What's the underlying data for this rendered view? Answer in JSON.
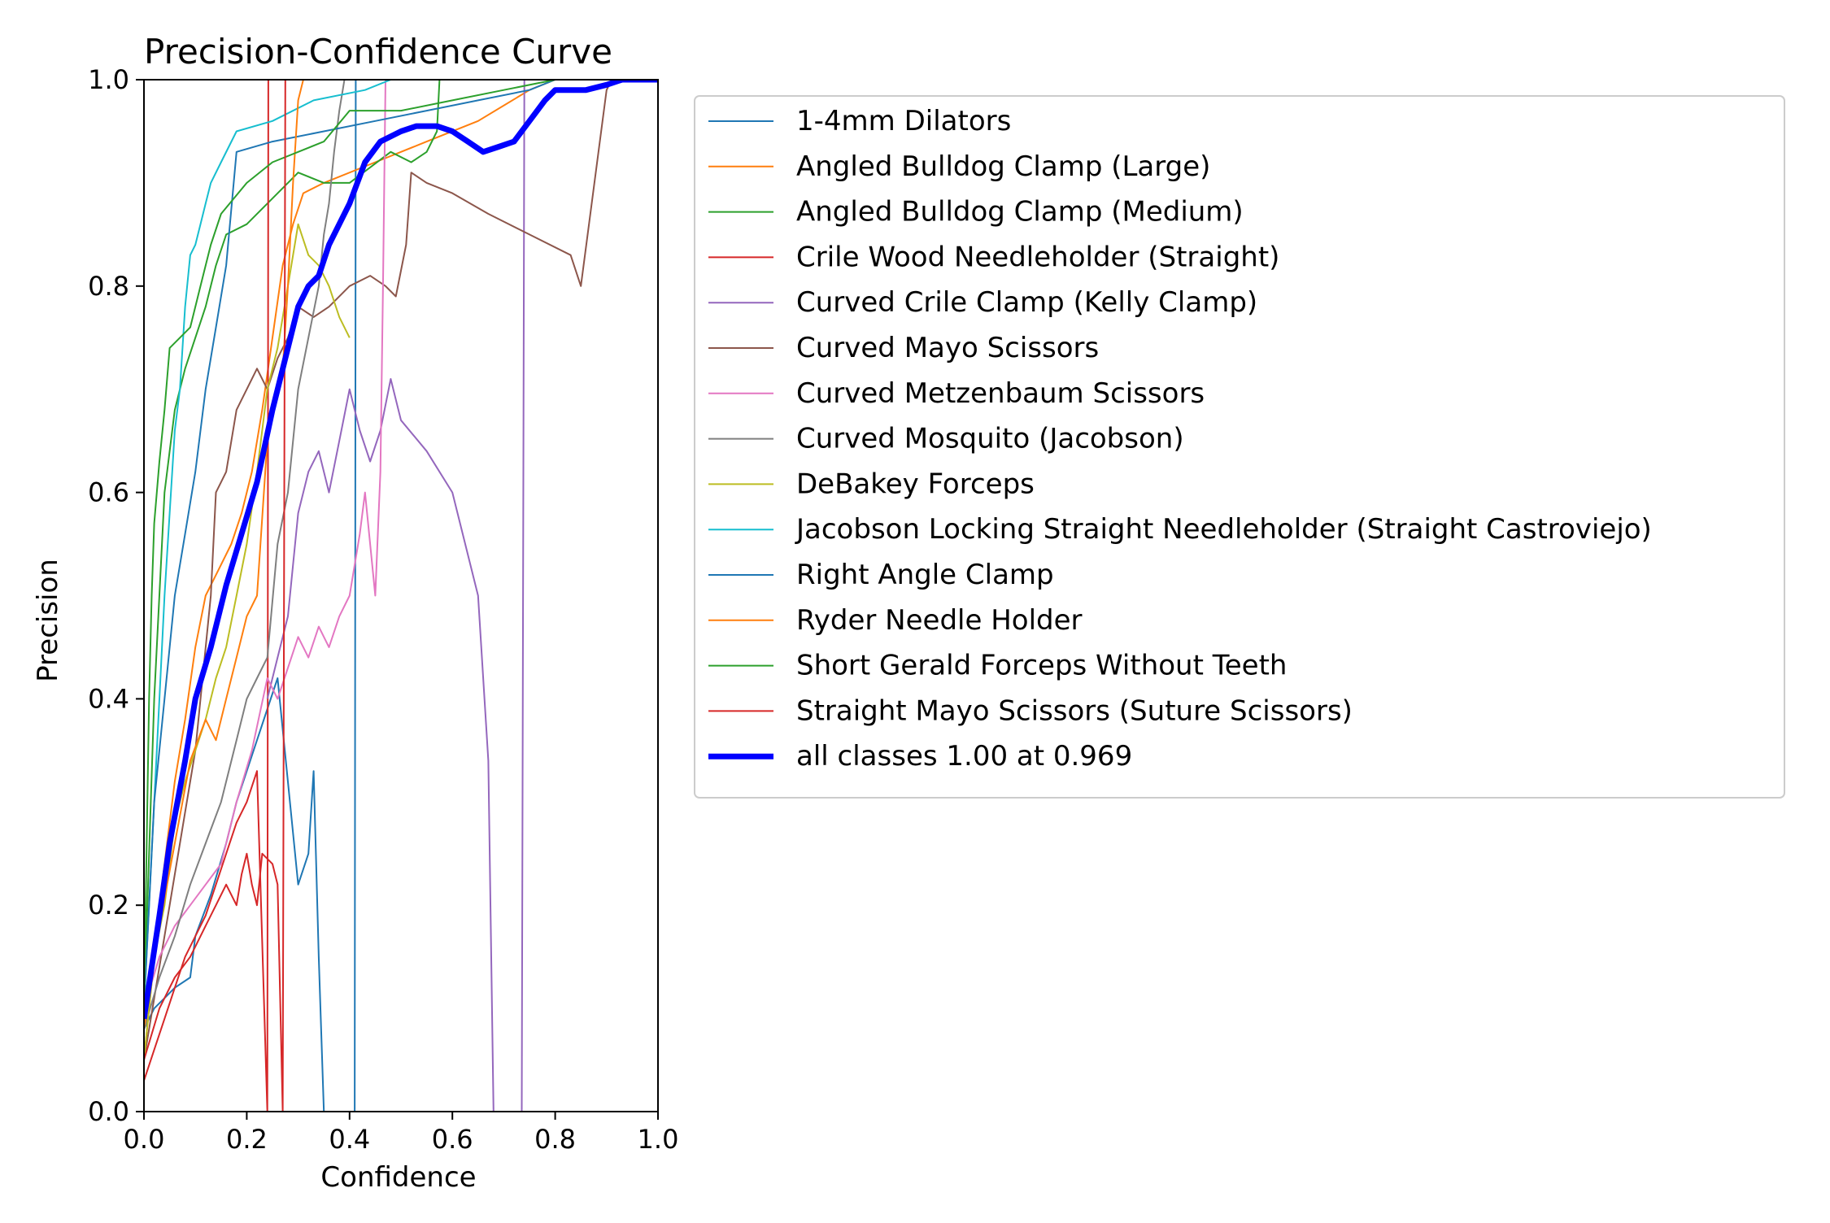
{
  "chart_data": {
    "type": "line",
    "title": "Precision-Confidence Curve",
    "xlabel": "Confidence",
    "ylabel": "Precision",
    "xlim": [
      0,
      1
    ],
    "ylim": [
      0,
      1
    ],
    "xticks": [
      "0.0",
      "0.2",
      "0.4",
      "0.6",
      "0.8",
      "1.0"
    ],
    "yticks": [
      "0.0",
      "0.2",
      "0.4",
      "0.6",
      "0.8",
      "1.0"
    ],
    "grid": false,
    "legend_position": "outside-right",
    "series": [
      {
        "name": "1-4mm Dilators",
        "color": "#1f77b4",
        "width": 2,
        "x": [
          0.0,
          0.02,
          0.04,
          0.06,
          0.09,
          0.1,
          0.13,
          0.16,
          0.18,
          0.22,
          0.26,
          0.3,
          0.32,
          0.33,
          0.34,
          0.35,
          0.41,
          0.412,
          0.414
        ],
        "y": [
          0.08,
          0.1,
          0.11,
          0.12,
          0.13,
          0.17,
          0.21,
          0.26,
          0.3,
          0.36,
          0.42,
          0.22,
          0.25,
          0.33,
          0.15,
          0.0,
          0.0,
          1.0,
          1.0
        ]
      },
      {
        "name": "Angled Bulldog Clamp (Large)",
        "color": "#ff7f0e",
        "width": 2,
        "x": [
          0.0,
          0.03,
          0.06,
          0.08,
          0.1,
          0.12,
          0.15,
          0.17,
          0.19,
          0.21,
          0.23,
          0.25,
          0.27,
          0.29,
          0.31,
          0.35,
          0.45,
          0.55,
          0.65,
          0.75,
          0.8,
          1.0
        ],
        "y": [
          0.05,
          0.2,
          0.32,
          0.38,
          0.45,
          0.5,
          0.53,
          0.55,
          0.58,
          0.62,
          0.68,
          0.75,
          0.82,
          0.86,
          0.89,
          0.9,
          0.92,
          0.94,
          0.96,
          0.99,
          1.0,
          1.0
        ]
      },
      {
        "name": "Angled Bulldog Clamp (Medium)",
        "color": "#2ca02c",
        "width": 2,
        "x": [
          0.0,
          0.02,
          0.04,
          0.06,
          0.08,
          0.1,
          0.12,
          0.14,
          0.16,
          0.2,
          0.24,
          0.28,
          0.3,
          0.35,
          0.4,
          0.48,
          0.52,
          0.55,
          0.57,
          0.575,
          0.58,
          1.0
        ],
        "y": [
          0.1,
          0.4,
          0.6,
          0.68,
          0.72,
          0.75,
          0.78,
          0.82,
          0.85,
          0.86,
          0.88,
          0.9,
          0.91,
          0.9,
          0.9,
          0.93,
          0.92,
          0.93,
          0.95,
          1.0,
          1.0,
          1.0
        ]
      },
      {
        "name": "Crile Wood Needleholder (Straight)",
        "color": "#d62728",
        "width": 2,
        "x": [
          0.0,
          0.02,
          0.04,
          0.06,
          0.08,
          0.1,
          0.12,
          0.14,
          0.16,
          0.18,
          0.2,
          0.22,
          0.24,
          0.242,
          0.244,
          1.0
        ],
        "y": [
          0.03,
          0.06,
          0.09,
          0.12,
          0.15,
          0.17,
          0.19,
          0.22,
          0.25,
          0.28,
          0.3,
          0.33,
          0.0,
          1.0,
          1.0,
          1.0
        ]
      },
      {
        "name": "Curved Crile Clamp (Kelly Clamp)",
        "color": "#9467bd",
        "width": 2,
        "x": [
          0.24,
          0.26,
          0.28,
          0.3,
          0.32,
          0.34,
          0.36,
          0.38,
          0.4,
          0.42,
          0.44,
          0.46,
          0.48,
          0.5,
          0.55,
          0.6,
          0.65,
          0.67,
          0.68,
          0.735,
          0.74,
          0.745,
          1.0
        ],
        "y": [
          0.4,
          0.44,
          0.48,
          0.58,
          0.62,
          0.64,
          0.6,
          0.65,
          0.7,
          0.66,
          0.63,
          0.66,
          0.71,
          0.67,
          0.64,
          0.6,
          0.5,
          0.34,
          0.0,
          0.0,
          1.0,
          1.0,
          1.0
        ]
      },
      {
        "name": "Curved Mayo Scissors",
        "color": "#8c564b",
        "width": 2,
        "x": [
          0.0,
          0.05,
          0.1,
          0.13,
          0.14,
          0.15,
          0.16,
          0.18,
          0.2,
          0.22,
          0.24,
          0.26,
          0.28,
          0.3,
          0.33,
          0.36,
          0.4,
          0.44,
          0.47,
          0.49,
          0.51,
          0.52,
          0.55,
          0.6,
          0.67,
          0.75,
          0.83,
          0.85,
          0.9,
          0.91,
          1.0
        ],
        "y": [
          0.05,
          0.2,
          0.35,
          0.5,
          0.6,
          0.61,
          0.62,
          0.68,
          0.7,
          0.72,
          0.7,
          0.73,
          0.75,
          0.78,
          0.77,
          0.78,
          0.8,
          0.81,
          0.8,
          0.79,
          0.84,
          0.91,
          0.9,
          0.89,
          0.87,
          0.85,
          0.83,
          0.8,
          0.99,
          1.0,
          1.0
        ]
      },
      {
        "name": "Curved Metzenbaum Scissors",
        "color": "#e377c2",
        "width": 2,
        "x": [
          0.0,
          0.03,
          0.06,
          0.09,
          0.12,
          0.15,
          0.18,
          0.21,
          0.24,
          0.26,
          0.28,
          0.3,
          0.32,
          0.34,
          0.36,
          0.38,
          0.4,
          0.42,
          0.43,
          0.44,
          0.45,
          0.46,
          0.465,
          0.47,
          1.0
        ],
        "y": [
          0.1,
          0.15,
          0.18,
          0.2,
          0.22,
          0.24,
          0.3,
          0.35,
          0.42,
          0.4,
          0.43,
          0.46,
          0.44,
          0.47,
          0.45,
          0.48,
          0.5,
          0.56,
          0.6,
          0.55,
          0.5,
          0.62,
          0.8,
          1.0,
          1.0
        ]
      },
      {
        "name": "Curved Mosquito (Jacobson)",
        "color": "#7f7f7f",
        "width": 2,
        "x": [
          0.0,
          0.03,
          0.06,
          0.09,
          0.12,
          0.15,
          0.18,
          0.2,
          0.22,
          0.24,
          0.26,
          0.28,
          0.3,
          0.32,
          0.34,
          0.35,
          0.36,
          0.37,
          0.38,
          0.39,
          1.0
        ],
        "y": [
          0.08,
          0.13,
          0.17,
          0.22,
          0.26,
          0.3,
          0.36,
          0.4,
          0.42,
          0.44,
          0.55,
          0.6,
          0.7,
          0.75,
          0.8,
          0.85,
          0.88,
          0.93,
          0.97,
          1.0,
          1.0
        ]
      },
      {
        "name": "DeBakey Forceps",
        "color": "#bcbd22",
        "width": 2,
        "x": [
          0.0,
          0.02,
          0.04,
          0.06,
          0.08,
          0.1,
          0.12,
          0.14,
          0.16,
          0.18,
          0.2,
          0.22,
          0.24,
          0.26,
          0.28,
          0.3,
          0.32,
          0.34,
          0.36,
          0.38,
          0.4
        ],
        "y": [
          0.05,
          0.15,
          0.2,
          0.28,
          0.32,
          0.35,
          0.38,
          0.42,
          0.45,
          0.5,
          0.55,
          0.62,
          0.7,
          0.74,
          0.8,
          0.86,
          0.83,
          0.82,
          0.8,
          0.77,
          0.75
        ]
      },
      {
        "name": "Jacobson Locking Straight Needleholder (Straight Castroviejo)",
        "color": "#17becf",
        "width": 2,
        "x": [
          0.0,
          0.02,
          0.03,
          0.04,
          0.05,
          0.06,
          0.07,
          0.08,
          0.09,
          0.1,
          0.11,
          0.12,
          0.13,
          0.15,
          0.18,
          0.25,
          0.33,
          0.43,
          0.48,
          1.0
        ],
        "y": [
          0.1,
          0.3,
          0.4,
          0.5,
          0.58,
          0.66,
          0.7,
          0.78,
          0.83,
          0.84,
          0.86,
          0.88,
          0.9,
          0.92,
          0.95,
          0.96,
          0.98,
          0.99,
          1.0,
          1.0
        ]
      },
      {
        "name": "Right Angle Clamp",
        "color": "#1f77b4",
        "width": 2,
        "x": [
          0.0,
          0.02,
          0.04,
          0.06,
          0.08,
          0.1,
          0.12,
          0.14,
          0.16,
          0.18,
          0.25,
          0.35,
          0.45,
          0.55,
          0.65,
          0.75,
          0.8,
          1.0
        ],
        "y": [
          0.1,
          0.3,
          0.4,
          0.5,
          0.56,
          0.62,
          0.7,
          0.76,
          0.82,
          0.93,
          0.94,
          0.95,
          0.96,
          0.97,
          0.98,
          0.99,
          1.0,
          1.0
        ]
      },
      {
        "name": "Ryder Needle Holder",
        "color": "#ff7f0e",
        "width": 2,
        "x": [
          0.0,
          0.03,
          0.06,
          0.09,
          0.12,
          0.14,
          0.16,
          0.18,
          0.2,
          0.22,
          0.24,
          0.26,
          0.27,
          0.28,
          0.29,
          0.3,
          0.31,
          1.0
        ],
        "y": [
          0.08,
          0.18,
          0.26,
          0.34,
          0.38,
          0.36,
          0.4,
          0.44,
          0.48,
          0.5,
          0.65,
          0.7,
          0.72,
          0.8,
          0.9,
          0.98,
          1.0,
          1.0
        ]
      },
      {
        "name": "Short Gerald Forceps Without Teeth",
        "color": "#2ca02c",
        "width": 2,
        "x": [
          0.0,
          0.01,
          0.015,
          0.02,
          0.03,
          0.04,
          0.05,
          0.07,
          0.09,
          0.11,
          0.13,
          0.15,
          0.2,
          0.25,
          0.3,
          0.35,
          0.4,
          0.5,
          0.6,
          0.7,
          0.8,
          1.0
        ],
        "y": [
          0.1,
          0.4,
          0.5,
          0.57,
          0.63,
          0.68,
          0.74,
          0.75,
          0.76,
          0.8,
          0.84,
          0.87,
          0.9,
          0.92,
          0.93,
          0.94,
          0.97,
          0.97,
          0.98,
          0.99,
          1.0,
          1.0
        ]
      },
      {
        "name": "Straight Mayo Scissors (Suture Scissors)",
        "color": "#d62728",
        "width": 2,
        "x": [
          0.0,
          0.03,
          0.06,
          0.09,
          0.12,
          0.14,
          0.16,
          0.18,
          0.19,
          0.2,
          0.21,
          0.22,
          0.23,
          0.25,
          0.26,
          0.27,
          0.275,
          0.28,
          0.29,
          1.0
        ],
        "y": [
          0.05,
          0.1,
          0.13,
          0.15,
          0.18,
          0.2,
          0.22,
          0.2,
          0.23,
          0.25,
          0.22,
          0.2,
          0.25,
          0.24,
          0.22,
          0.0,
          1.0,
          1.0,
          1.0,
          1.0
        ]
      },
      {
        "name": "all classes 1.00 at 0.969",
        "color": "#0000ff",
        "width": 7,
        "x": [
          0.0,
          0.03,
          0.05,
          0.08,
          0.1,
          0.13,
          0.16,
          0.19,
          0.22,
          0.25,
          0.28,
          0.3,
          0.32,
          0.34,
          0.36,
          0.4,
          0.43,
          0.46,
          0.5,
          0.53,
          0.57,
          0.6,
          0.63,
          0.66,
          0.69,
          0.72,
          0.75,
          0.78,
          0.8,
          0.83,
          0.86,
          0.9,
          0.93,
          0.969,
          1.0
        ],
        "y": [
          0.09,
          0.19,
          0.26,
          0.34,
          0.4,
          0.45,
          0.51,
          0.56,
          0.61,
          0.68,
          0.74,
          0.78,
          0.8,
          0.81,
          0.84,
          0.88,
          0.92,
          0.94,
          0.95,
          0.955,
          0.955,
          0.95,
          0.94,
          0.93,
          0.935,
          0.94,
          0.96,
          0.98,
          0.99,
          0.99,
          0.99,
          0.995,
          1.0,
          1.0,
          1.0
        ]
      }
    ]
  }
}
